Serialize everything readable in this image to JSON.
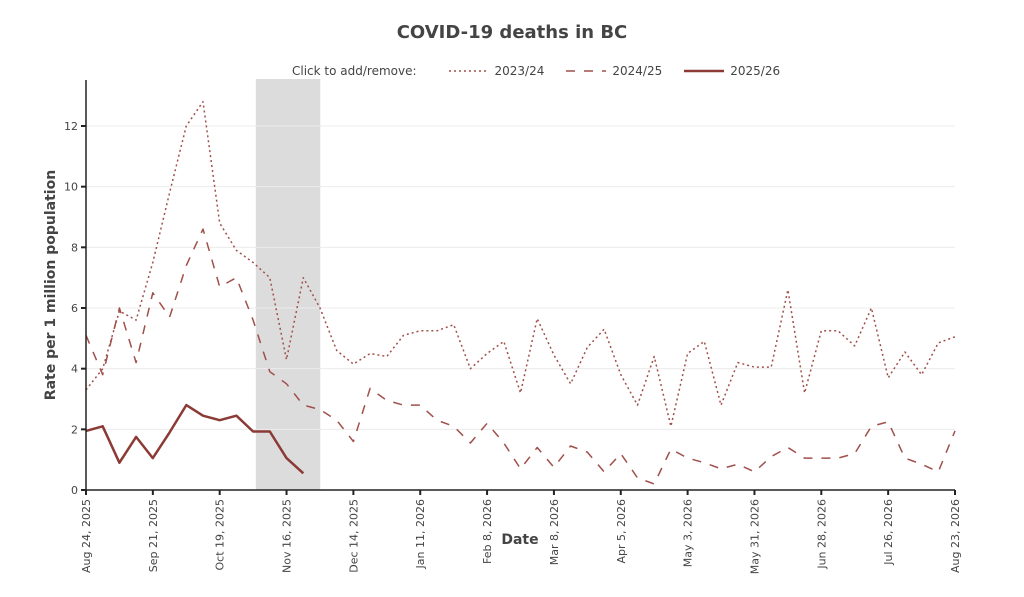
{
  "chart_data": {
    "type": "line",
    "title": "COVID-19 deaths in BC",
    "xlabel": "Date",
    "ylabel": "Rate per 1 million population",
    "ylim": [
      0,
      13.5
    ],
    "yticks": [
      0,
      2,
      4,
      6,
      8,
      10,
      12
    ],
    "grid": true,
    "legend_prompt": "Click to add/remove:",
    "legend_position": "top",
    "x_tick_labels": [
      "Aug 24, 2025",
      "Sep 21, 2025",
      "Oct 19, 2025",
      "Nov 16, 2025",
      "Dec 14, 2025",
      "Jan 11, 2026",
      "Feb 8, 2026",
      "Mar 8, 2026",
      "Apr 5, 2026",
      "May 3, 2026",
      "May 31, 2026",
      "Jun 28, 2026",
      "Jul 26, 2026",
      "Aug 23, 2026"
    ],
    "x_tick_weeks": [
      0,
      4,
      8,
      12,
      16,
      20,
      24,
      28,
      32,
      36,
      40,
      44,
      48,
      52
    ],
    "weeks_total": 52,
    "highlight_weeks": [
      11,
      13
    ],
    "highlight_color": "#dcdcdc",
    "series": [
      {
        "name": "2023/24",
        "style": "dotted",
        "color": "#a0504a",
        "values": [
          3.3,
          4.0,
          5.9,
          5.6,
          7.5,
          9.8,
          12.0,
          12.8,
          8.8,
          7.9,
          7.5,
          7.0,
          4.3,
          7.0,
          6.0,
          4.6,
          4.15,
          4.5,
          4.4,
          5.1,
          5.25,
          5.25,
          5.45,
          4.0,
          4.5,
          4.9,
          3.2,
          5.65,
          4.45,
          3.5,
          4.7,
          5.3,
          3.8,
          2.8,
          4.4,
          2.1,
          4.5,
          4.9,
          2.8,
          4.2,
          4.05,
          4.05,
          6.6,
          3.2,
          5.25,
          5.25,
          4.75,
          6.0,
          3.7,
          4.55,
          3.8,
          4.85,
          5.05
        ]
      },
      {
        "name": "2024/25",
        "style": "dashed",
        "color": "#a0504a",
        "values": [
          5.1,
          3.8,
          6.0,
          4.2,
          6.5,
          5.7,
          7.4,
          8.6,
          6.7,
          7.0,
          5.6,
          3.9,
          3.5,
          2.8,
          2.65,
          2.3,
          1.6,
          3.35,
          2.95,
          2.8,
          2.8,
          2.3,
          2.1,
          1.55,
          2.2,
          1.55,
          0.7,
          1.4,
          0.75,
          1.45,
          1.25,
          0.6,
          1.2,
          0.4,
          0.2,
          1.35,
          1.05,
          0.9,
          0.7,
          0.85,
          0.6,
          1.1,
          1.4,
          1.05,
          1.05,
          1.05,
          1.2,
          2.1,
          2.25,
          1.05,
          0.85,
          0.6,
          1.95
        ]
      },
      {
        "name": "2025/26",
        "style": "solid",
        "color": "#8b3a36",
        "values": [
          1.95,
          2.1,
          0.9,
          1.75,
          1.05,
          1.9,
          2.8,
          2.45,
          2.3,
          2.45,
          1.93,
          1.93,
          1.05,
          0.55
        ]
      }
    ]
  }
}
